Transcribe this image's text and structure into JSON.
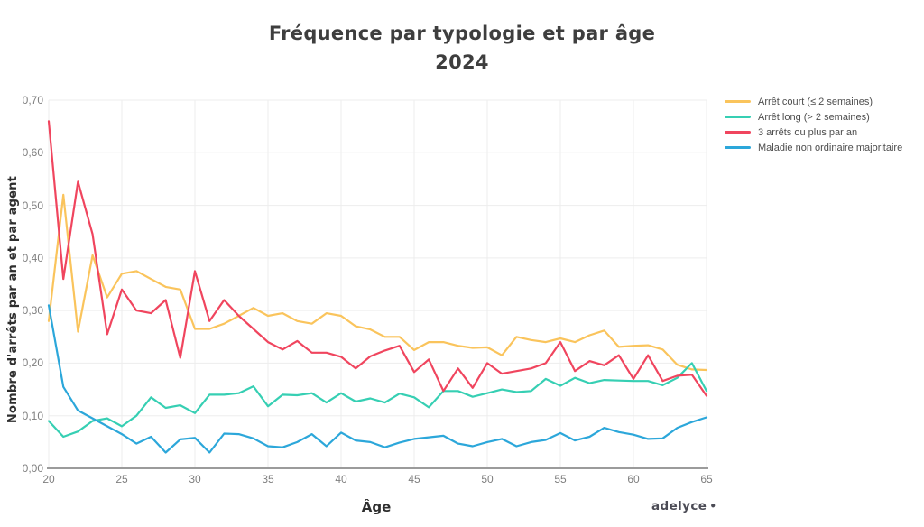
{
  "title": {
    "line1": "Fréquence par typologie et par âge",
    "line2": "2024"
  },
  "axes": {
    "y_label": "Nombre d'arrêts par an et par agent",
    "x_label": "Âge",
    "y_ticks": [
      "0,00",
      "0,10",
      "0,20",
      "0,30",
      "0,40",
      "0,50",
      "0,60",
      "0,70"
    ],
    "x_ticks": [
      "20",
      "25",
      "30",
      "35",
      "40",
      "45",
      "50",
      "55",
      "60",
      "65"
    ]
  },
  "branding": {
    "logo_text": "adelyce",
    "logo_dot": "•"
  },
  "colors": {
    "grid": "#ededed",
    "axis_line": "#9b9b9b",
    "tick_text": "#7f7f7f",
    "title_text": "#3e3e3e"
  },
  "chart_data": {
    "type": "line",
    "title": "Fréquence par typologie et par âge 2024",
    "xlabel": "Âge",
    "ylabel": "Nombre d'arrêts par an et par agent",
    "x_range": [
      20,
      65
    ],
    "y_range": [
      0,
      0.7
    ],
    "grid": true,
    "legend_position": "top-right",
    "x": [
      20,
      21,
      22,
      23,
      24,
      25,
      26,
      27,
      28,
      29,
      30,
      31,
      32,
      33,
      34,
      35,
      36,
      37,
      38,
      39,
      40,
      41,
      42,
      43,
      44,
      45,
      46,
      47,
      48,
      49,
      50,
      51,
      52,
      53,
      54,
      55,
      56,
      57,
      58,
      59,
      60,
      61,
      62,
      63,
      64,
      65
    ],
    "series": [
      {
        "name": "Arrêt court (≤ 2 semaines)",
        "color": "#FAC45C",
        "values": [
          0.28,
          0.52,
          0.26,
          0.405,
          0.325,
          0.37,
          0.375,
          0.36,
          0.345,
          0.34,
          0.265,
          0.265,
          0.275,
          0.29,
          0.305,
          0.29,
          0.295,
          0.28,
          0.275,
          0.295,
          0.29,
          0.27,
          0.264,
          0.25,
          0.25,
          0.225,
          0.24,
          0.24,
          0.233,
          0.229,
          0.23,
          0.215,
          0.25,
          0.244,
          0.24,
          0.247,
          0.24,
          0.253,
          0.262,
          0.231,
          0.233,
          0.234,
          0.226,
          0.197,
          0.188,
          0.187
        ]
      },
      {
        "name": "Arrêt long (> 2 semaines)",
        "color": "#36CFB3",
        "values": [
          0.09,
          0.06,
          0.07,
          0.09,
          0.095,
          0.08,
          0.1,
          0.135,
          0.115,
          0.12,
          0.105,
          0.14,
          0.14,
          0.143,
          0.156,
          0.118,
          0.14,
          0.139,
          0.143,
          0.125,
          0.143,
          0.127,
          0.133,
          0.125,
          0.142,
          0.135,
          0.116,
          0.147,
          0.147,
          0.136,
          0.143,
          0.15,
          0.145,
          0.147,
          0.17,
          0.157,
          0.172,
          0.162,
          0.168,
          0.167,
          0.166,
          0.166,
          0.158,
          0.172,
          0.2,
          0.147
        ]
      },
      {
        "name": "3 arrêts ou plus par an",
        "color": "#F0455E",
        "values": [
          0.66,
          0.36,
          0.545,
          0.445,
          0.255,
          0.34,
          0.3,
          0.295,
          0.32,
          0.21,
          0.375,
          0.28,
          0.32,
          0.29,
          0.265,
          0.24,
          0.226,
          0.242,
          0.22,
          0.22,
          0.212,
          0.19,
          0.213,
          0.224,
          0.233,
          0.183,
          0.207,
          0.147,
          0.19,
          0.153,
          0.2,
          0.18,
          0.185,
          0.19,
          0.2,
          0.24,
          0.185,
          0.204,
          0.196,
          0.215,
          0.17,
          0.215,
          0.166,
          0.176,
          0.178,
          0.138
        ]
      },
      {
        "name": "Maladie non ordinaire majoritaire",
        "color": "#2CA7DA",
        "values": [
          0.31,
          0.155,
          0.11,
          0.095,
          0.08,
          0.065,
          0.047,
          0.06,
          0.03,
          0.055,
          0.058,
          0.03,
          0.066,
          0.065,
          0.057,
          0.042,
          0.04,
          0.05,
          0.065,
          0.042,
          0.068,
          0.053,
          0.05,
          0.04,
          0.049,
          0.056,
          0.059,
          0.062,
          0.047,
          0.042,
          0.05,
          0.056,
          0.042,
          0.05,
          0.054,
          0.067,
          0.053,
          0.06,
          0.077,
          0.069,
          0.064,
          0.056,
          0.057,
          0.077,
          0.088,
          0.097
        ]
      }
    ]
  }
}
